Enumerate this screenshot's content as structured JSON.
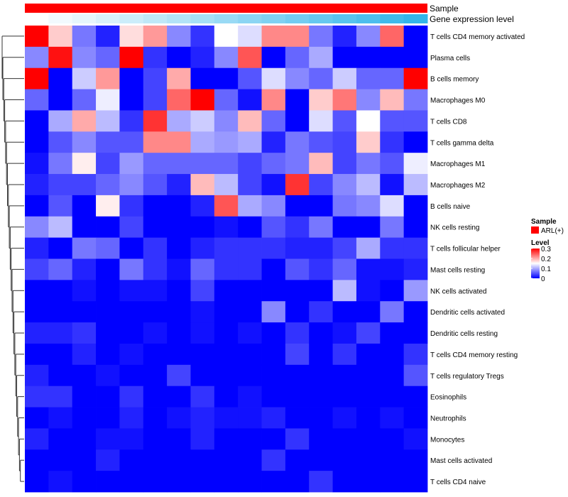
{
  "chart_data": {
    "type": "heatmap",
    "title": "",
    "annotation_tracks": [
      {
        "name": "Sample",
        "kind": "categorical",
        "colors": [
          "#ff0000"
        ]
      },
      {
        "name": "Gene expression level",
        "kind": "gradient",
        "colors": [
          "#ffffff",
          "#33b5ea"
        ]
      }
    ],
    "rows": [
      "T cells CD4 memory activated",
      "Plasma cells",
      "B cells memory",
      "Macrophages M0",
      "T cells CD8",
      "T cells gamma delta",
      "Macrophages M1",
      "Macrophages M2",
      "B cells naive",
      "NK cells resting",
      "T cells follicular helper",
      "Mast cells resting",
      "NK cells activated",
      "Dendritic cells activated",
      "Dendritic cells resting",
      "T cells CD4 memory resting",
      "T cells regulatory  Tregs",
      "Eosinophils",
      "Neutrophils",
      "Monocytes",
      "Mast cells activated",
      "T cells CD4 naive"
    ],
    "n_columns": 17,
    "values": [
      [
        0.3,
        0.18,
        0.07,
        0.02,
        0.17,
        0.21,
        0.08,
        0.03,
        0.15,
        0.13,
        0.22,
        0.22,
        0.07,
        0.02,
        0.08,
        0.24,
        0.0
      ],
      [
        0.08,
        0.29,
        0.08,
        0.06,
        0.3,
        0.03,
        0.0,
        0.02,
        0.08,
        0.25,
        0.0,
        0.06,
        0.1,
        0.0,
        0.0,
        0.0,
        0.0
      ],
      [
        0.3,
        0.0,
        0.12,
        0.21,
        0.0,
        0.04,
        0.2,
        0.0,
        0.0,
        0.05,
        0.13,
        0.08,
        0.06,
        0.12,
        0.06,
        0.06,
        0.3
      ],
      [
        0.06,
        0.0,
        0.06,
        0.14,
        0.0,
        0.04,
        0.24,
        0.3,
        0.06,
        0.01,
        0.22,
        0.0,
        0.18,
        0.23,
        0.08,
        0.19,
        0.07
      ],
      [
        0.0,
        0.1,
        0.2,
        0.11,
        0.03,
        0.27,
        0.1,
        0.12,
        0.08,
        0.19,
        0.06,
        0.0,
        0.13,
        0.05,
        0.15,
        0.05,
        0.05
      ],
      [
        0.0,
        0.05,
        0.08,
        0.05,
        0.05,
        0.22,
        0.22,
        0.1,
        0.09,
        0.1,
        0.02,
        0.07,
        0.05,
        0.04,
        0.18,
        0.03,
        0.0
      ],
      [
        0.01,
        0.07,
        0.16,
        0.04,
        0.09,
        0.06,
        0.06,
        0.06,
        0.06,
        0.04,
        0.06,
        0.07,
        0.19,
        0.04,
        0.07,
        0.05,
        0.14
      ],
      [
        0.02,
        0.04,
        0.04,
        0.06,
        0.08,
        0.05,
        0.02,
        0.19,
        0.11,
        0.04,
        0.01,
        0.27,
        0.04,
        0.08,
        0.11,
        0.01,
        0.11
      ],
      [
        0.0,
        0.05,
        0.0,
        0.16,
        0.03,
        0.0,
        0.0,
        0.02,
        0.25,
        0.1,
        0.08,
        0.0,
        0.0,
        0.07,
        0.08,
        0.13,
        0.0
      ],
      [
        0.08,
        0.11,
        0.0,
        0.0,
        0.04,
        0.0,
        0.0,
        0.0,
        0.01,
        0.0,
        0.05,
        0.03,
        0.07,
        0.0,
        0.0,
        0.07,
        0.0
      ],
      [
        0.02,
        0.0,
        0.07,
        0.06,
        0.0,
        0.03,
        0.0,
        0.02,
        0.03,
        0.03,
        0.03,
        0.02,
        0.02,
        0.04,
        0.1,
        0.03,
        0.03
      ],
      [
        0.04,
        0.06,
        0.02,
        0.0,
        0.07,
        0.03,
        0.01,
        0.06,
        0.03,
        0.03,
        0.0,
        0.05,
        0.03,
        0.06,
        0.01,
        0.01,
        0.02
      ],
      [
        0.0,
        0.0,
        0.01,
        0.0,
        0.01,
        0.01,
        0.0,
        0.04,
        0.0,
        0.0,
        0.0,
        0.0,
        0.0,
        0.11,
        0.01,
        0.0,
        0.09
      ],
      [
        0.0,
        0.0,
        0.0,
        0.0,
        0.0,
        0.0,
        0.0,
        0.01,
        0.0,
        0.0,
        0.08,
        0.0,
        0.03,
        0.0,
        0.0,
        0.07,
        0.0
      ],
      [
        0.02,
        0.02,
        0.03,
        0.0,
        0.0,
        0.01,
        0.0,
        0.01,
        0.0,
        0.01,
        0.0,
        0.03,
        0.0,
        0.01,
        0.04,
        0.0,
        0.0
      ],
      [
        0.0,
        0.0,
        0.02,
        0.0,
        0.01,
        0.0,
        0.0,
        0.0,
        0.0,
        0.0,
        0.0,
        0.04,
        0.0,
        0.03,
        0.0,
        0.0,
        0.03
      ],
      [
        0.02,
        0.0,
        0.0,
        0.01,
        0.0,
        0.0,
        0.04,
        0.0,
        0.0,
        0.0,
        0.0,
        0.0,
        0.0,
        0.0,
        0.0,
        0.0,
        0.05
      ],
      [
        0.03,
        0.03,
        0.0,
        0.0,
        0.03,
        0.0,
        0.0,
        0.03,
        0.0,
        0.01,
        0.0,
        0.0,
        0.0,
        0.0,
        0.0,
        0.0,
        0.0
      ],
      [
        0.0,
        0.01,
        0.0,
        0.0,
        0.02,
        0.0,
        0.01,
        0.02,
        0.01,
        0.01,
        0.02,
        0.0,
        0.0,
        0.01,
        0.0,
        0.01,
        0.0
      ],
      [
        0.02,
        0.0,
        0.0,
        0.01,
        0.01,
        0.0,
        0.0,
        0.02,
        0.0,
        0.0,
        0.0,
        0.03,
        0.0,
        0.0,
        0.0,
        0.0,
        0.01
      ],
      [
        0.0,
        0.0,
        0.0,
        0.02,
        0.0,
        0.0,
        0.0,
        0.0,
        0.0,
        0.0,
        0.03,
        0.0,
        0.0,
        0.0,
        0.0,
        0.0,
        0.0
      ],
      [
        0.0,
        0.01,
        0.0,
        0.0,
        0.0,
        0.0,
        0.0,
        0.0,
        0.0,
        0.0,
        0.0,
        0.0,
        0.03,
        0.0,
        0.0,
        0.0,
        0.0
      ]
    ],
    "color_scale": {
      "min": 0,
      "max": 0.3,
      "stops": [
        "#0000ff",
        "#ffffff",
        "#ff0000"
      ],
      "midpoint": 0.15
    },
    "legend": {
      "sample_title": "Sample",
      "sample_entries": [
        {
          "label": "ARL(+)",
          "color": "#ff0000"
        }
      ],
      "level_title": "Level",
      "level_ticks": [
        "0.3",
        "0.2",
        "0.1",
        "0"
      ],
      "level_tick_values": [
        0.3,
        0.2,
        0.1,
        0
      ]
    },
    "row_dendrogram": true,
    "legend_position": "right"
  }
}
